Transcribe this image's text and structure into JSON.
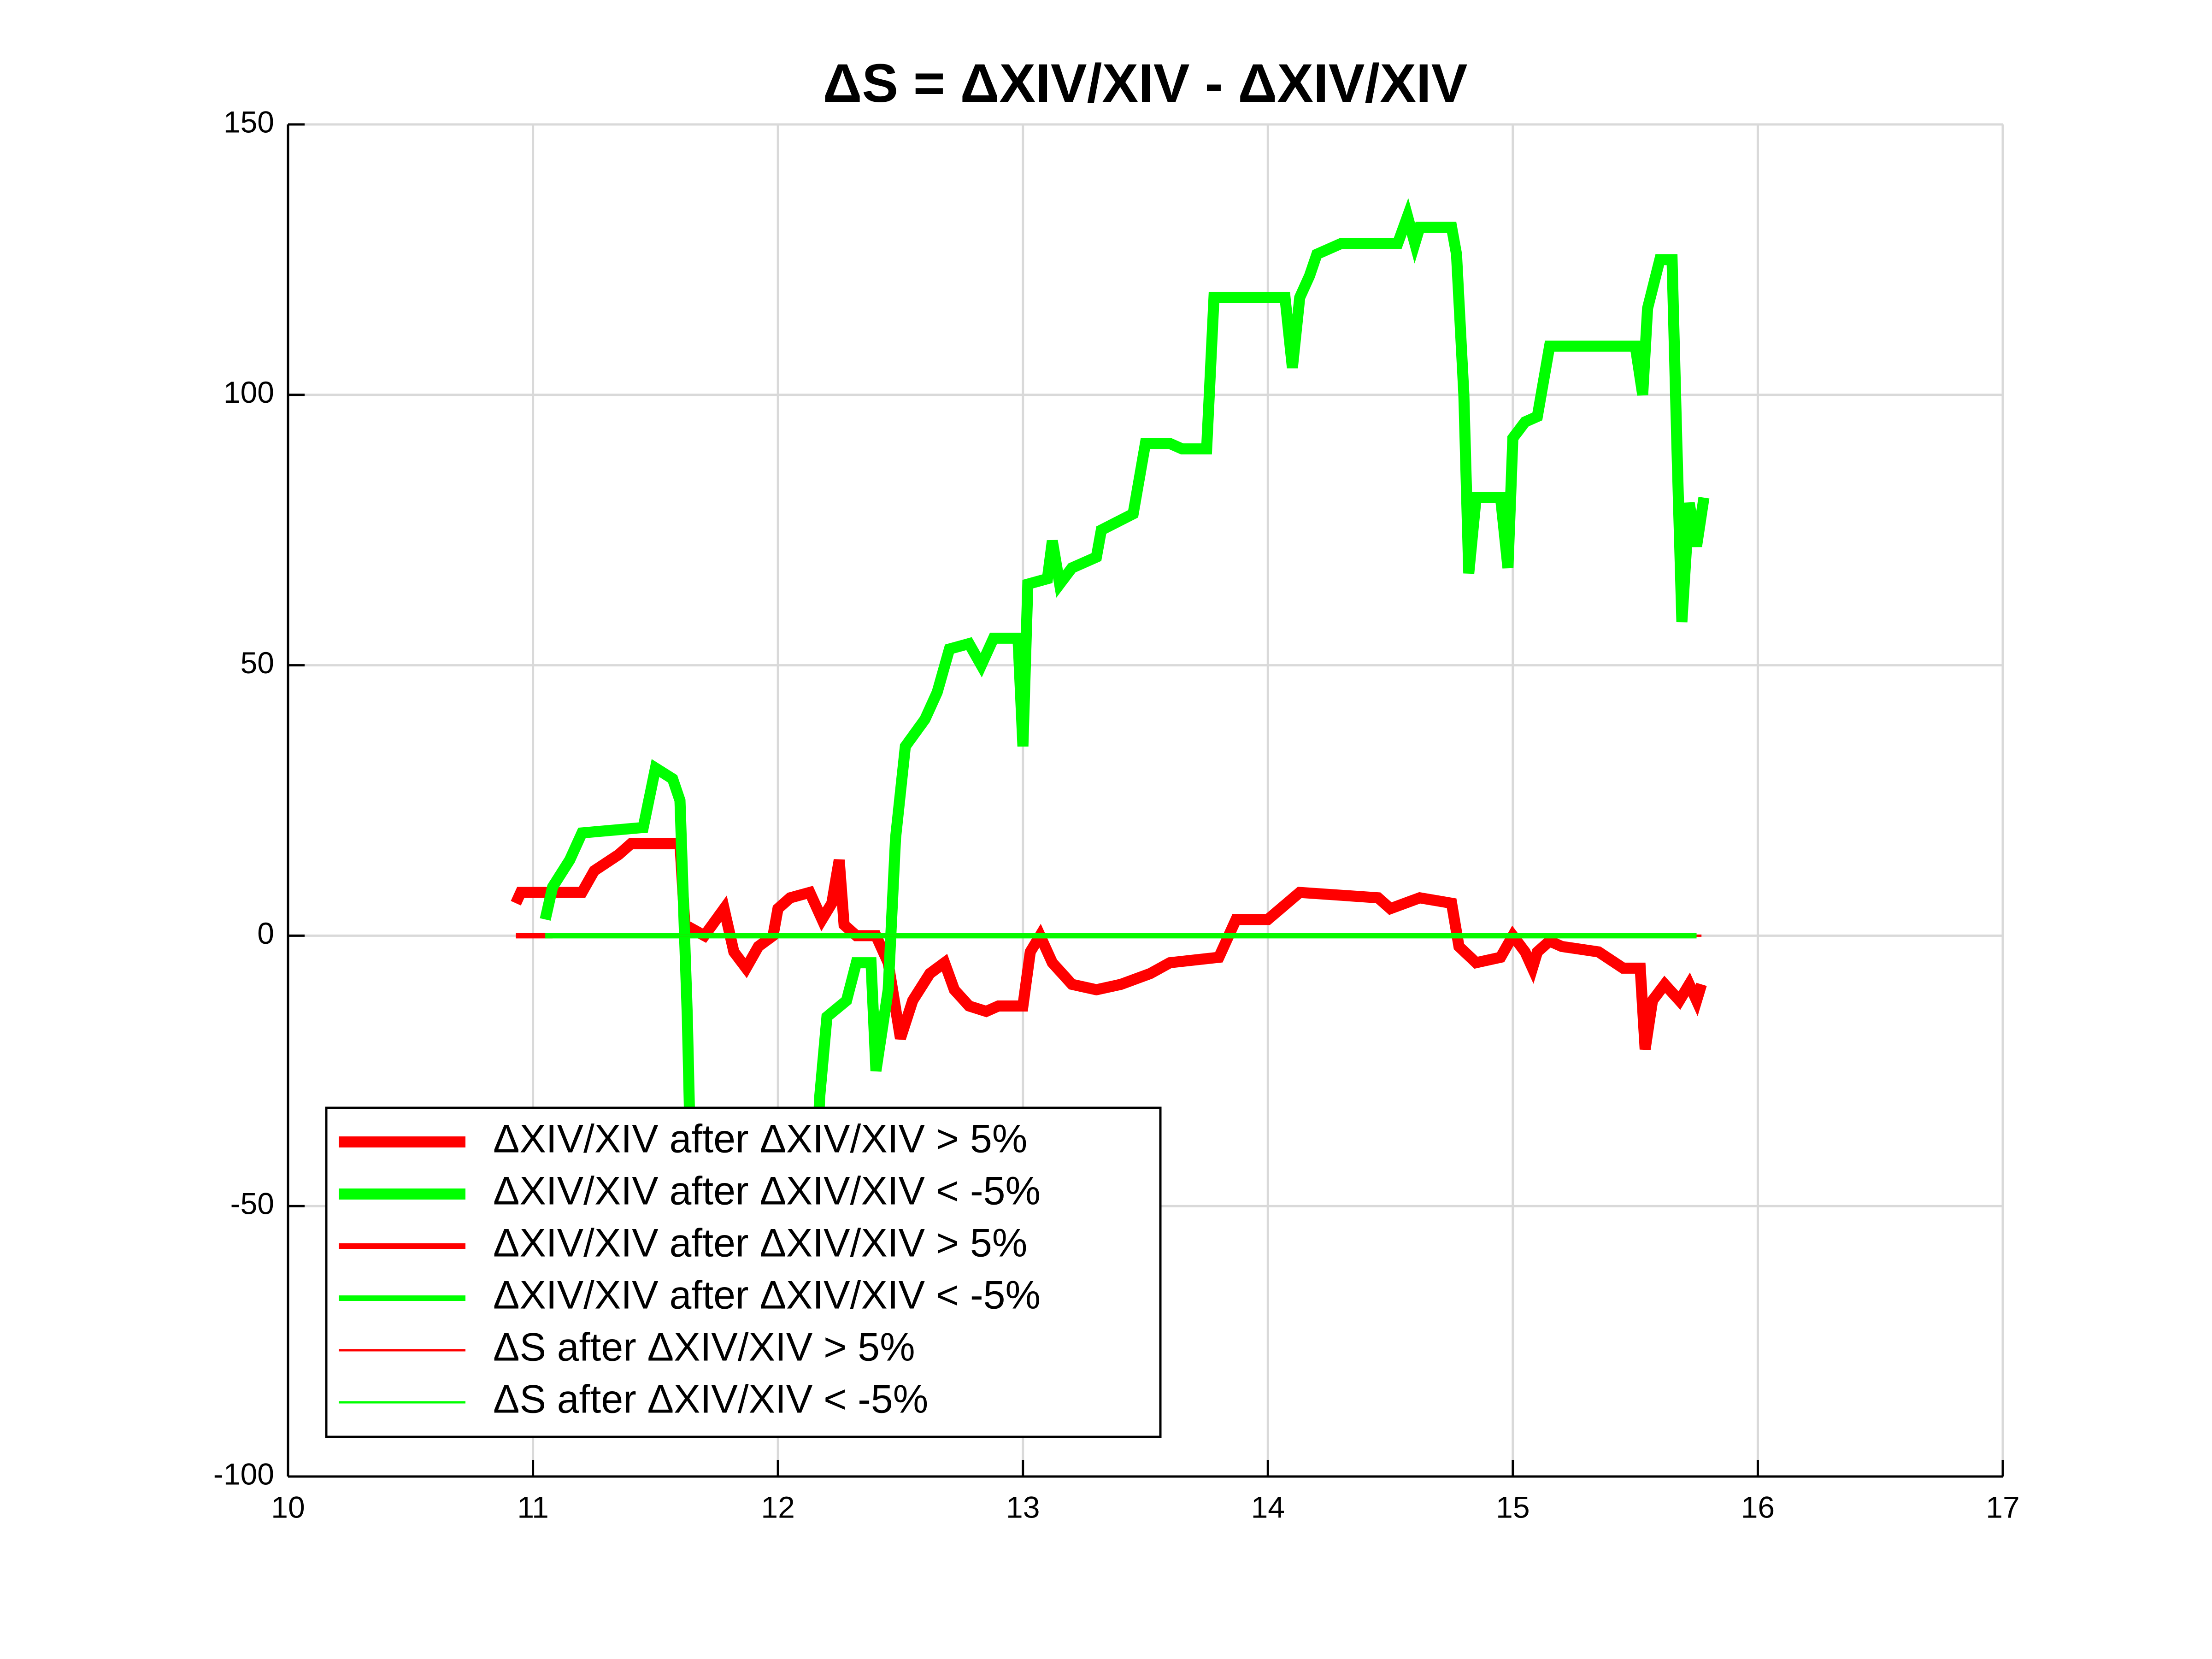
{
  "chart_data": {
    "type": "line",
    "title": "ΔS = ΔXIV/XIV - ΔXIV/XIV",
    "xlim": [
      10,
      17
    ],
    "xticks": [
      10,
      11,
      12,
      13,
      14,
      15,
      16,
      17
    ],
    "ylim": [
      -100,
      150
    ],
    "yticks": [
      -100,
      -50,
      0,
      50,
      100,
      150
    ],
    "grid": true,
    "legend": "lower left",
    "series": [
      {
        "name": "ΔXIV/XIV after ΔXIV/XIV > 5%",
        "color": "#ff0000",
        "linewidth": 24,
        "x": [
          10.93,
          10.95,
          11.2,
          11.25,
          11.35,
          11.4,
          11.6,
          11.62,
          11.7,
          11.78,
          11.82,
          11.87,
          11.92,
          11.98,
          12.0,
          12.05,
          12.13,
          12.18,
          12.22,
          12.25,
          12.27,
          12.32,
          12.4,
          12.45,
          12.5,
          12.55,
          12.62,
          12.68,
          12.72,
          12.78,
          12.85,
          12.9,
          13.0,
          13.03,
          13.07,
          13.12,
          13.2,
          13.3,
          13.4,
          13.52,
          13.6,
          13.8,
          13.87,
          14.0,
          14.13,
          14.45,
          14.5,
          14.62,
          14.75,
          14.78,
          14.85,
          14.95,
          15.0,
          15.05,
          15.08,
          15.1,
          15.15,
          15.2,
          15.35,
          15.45,
          15.52,
          15.54,
          15.57,
          15.62,
          15.68,
          15.72,
          15.75,
          15.77
        ],
        "values": [
          6,
          8,
          8,
          12,
          15,
          17,
          17,
          2,
          0,
          5,
          -3,
          -6,
          -2,
          0,
          5,
          7,
          8,
          3,
          6,
          14,
          2,
          0,
          0,
          -5,
          -19,
          -12,
          -7,
          -5,
          -10,
          -13,
          -14,
          -13,
          -13,
          -3,
          0,
          -5,
          -9,
          -10,
          -9,
          -7,
          -5,
          -4,
          3,
          3,
          8,
          7,
          5,
          7,
          6,
          -2,
          -5,
          -4,
          0,
          -3,
          -6,
          -3,
          -1,
          -2,
          -3,
          -6,
          -6,
          -21,
          -12,
          -9,
          -12,
          -9,
          -12,
          -9
        ]
      },
      {
        "name": "ΔXIV/XIV after ΔXIV/XIV < -5%",
        "color": "#00ff00",
        "linewidth": 24,
        "x": [
          11.05,
          11.08,
          11.15,
          11.2,
          11.45,
          11.5,
          11.57,
          11.6,
          11.63,
          11.65,
          12.15,
          12.17,
          12.2,
          12.28,
          12.32,
          12.38,
          12.4,
          12.45,
          12.48,
          12.52,
          12.6,
          12.65,
          12.7,
          12.78,
          12.83,
          12.88,
          12.98,
          13.0,
          13.02,
          13.1,
          13.12,
          13.15,
          13.2,
          13.3,
          13.32,
          13.45,
          13.5,
          13.6,
          13.65,
          13.75,
          13.78,
          14.07,
          14.1,
          14.13,
          14.17,
          14.2,
          14.3,
          14.53,
          14.57,
          14.6,
          14.62,
          14.75,
          14.77,
          14.8,
          14.82,
          14.85,
          14.95,
          14.98,
          15.0,
          15.05,
          15.1,
          15.15,
          15.5,
          15.53,
          15.55,
          15.6,
          15.65,
          15.67,
          15.69,
          15.72,
          15.75,
          15.78
        ],
        "values": [
          3,
          9,
          14,
          19,
          20,
          31,
          29,
          25,
          -15,
          -55,
          -55,
          -30,
          -15,
          -12,
          -5,
          -5,
          -25,
          -10,
          18,
          35,
          40,
          45,
          53,
          54,
          50,
          55,
          55,
          35,
          65,
          66,
          73,
          65,
          68,
          70,
          75,
          78,
          91,
          91,
          90,
          90,
          118,
          118,
          105,
          118,
          122,
          126,
          128,
          128,
          133,
          128,
          131,
          131,
          126,
          100,
          67,
          81,
          81,
          68,
          92,
          95,
          96,
          109,
          109,
          100,
          116,
          125,
          125,
          90,
          58,
          80,
          72,
          81
        ]
      },
      {
        "name": "ΔXIV/XIV after ΔXIV/XIV > 5%",
        "color": "#ff0000",
        "linewidth": 12,
        "x": [
          10.93,
          11.08
        ],
        "values": [
          0,
          0
        ]
      },
      {
        "name": "ΔXIV/XIV after ΔXIV/XIV < -5%",
        "color": "#00ff00",
        "linewidth": 12,
        "x": [
          11.05,
          15.75
        ],
        "values": [
          0,
          0
        ]
      },
      {
        "name": "ΔS after ΔXIV/XIV > 5%",
        "color": "#ff0000",
        "linewidth": 5,
        "x": [
          11.0,
          15.77
        ],
        "values": [
          0,
          0
        ]
      },
      {
        "name": "ΔS after ΔXIV/XIV < -5%",
        "color": "#00ff00",
        "linewidth": 5,
        "x": [
          11.05,
          15.75
        ],
        "values": [
          0,
          0
        ]
      }
    ]
  }
}
